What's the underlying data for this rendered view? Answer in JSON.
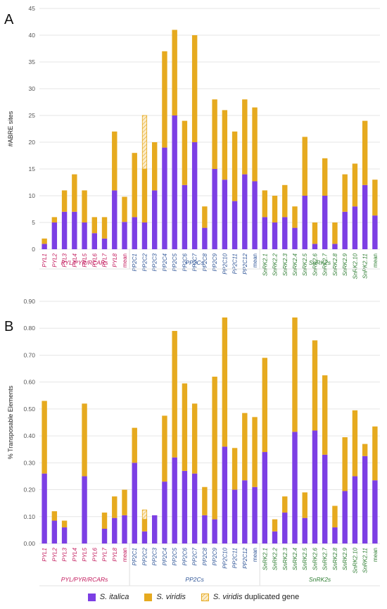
{
  "colors": {
    "italica": "#7c3fe4",
    "viridis": "#e6aa1f",
    "dup_fill": "#fbeccb",
    "pyl_label": "#c2185b",
    "pp2c_label": "#2f5597",
    "snrk_label": "#2e7d32",
    "grid": "#e6e6e6"
  },
  "legend": {
    "italica": "S. italica",
    "viridis": "S. viridis",
    "duplicated_species": "S. viridis",
    "duplicated_suffix": "duplicated gene"
  },
  "chart_data": [
    {
      "type": "bar",
      "stacked": true,
      "panel": "A",
      "ylabel": "#ABRE sites",
      "ylim": [
        0,
        45
      ],
      "yticks": [
        "0",
        "5",
        "10",
        "15",
        "20",
        "25",
        "30",
        "35",
        "40",
        "45"
      ],
      "grid": true,
      "groups": [
        {
          "label": "PYL/PYR/RCARs",
          "color_key": "pyl_label",
          "start": 0,
          "end": 8
        },
        {
          "label": "PP2Cs",
          "color_key": "pp2c_label",
          "start": 9,
          "end": 21
        },
        {
          "label": "SnRK2s",
          "color_key": "snrk_label",
          "start": 22,
          "end": 33
        }
      ],
      "categories": [
        "PYL1",
        "PYL2",
        "PYL3",
        "PYL4",
        "PYL5",
        "PYL6",
        "PYL7",
        "PYL8",
        "mean",
        "PP2C1",
        "PP2C2",
        "PP2C3",
        "PP2C4",
        "PP2C5",
        "PP2C6",
        "PP2C7",
        "PP2C8",
        "PP2C9",
        "PP2C10",
        "PP2C11",
        "PP2C12",
        "mean",
        "SnRK2.1",
        "SnRK2.2",
        "SnRK2.3",
        "SnRK2.4",
        "SnRK2.5",
        "SnRK2.6",
        "SnRK2.7",
        "SnRK2.8",
        "SnRK2.9",
        "SnRK2.10",
        "SnRK2.11",
        "mean"
      ],
      "series": [
        {
          "name": "S. italica",
          "values": [
            1,
            5,
            7,
            7,
            5,
            3,
            2,
            11,
            5.1,
            6,
            5,
            11,
            19,
            25,
            12,
            20,
            4,
            15,
            13,
            9,
            14,
            12.7,
            6,
            5,
            6,
            4,
            10,
            1,
            10,
            1,
            7,
            8,
            12,
            6.3
          ]
        },
        {
          "name": "S. viridis",
          "values": [
            1,
            1,
            4,
            7,
            6,
            3,
            4,
            11,
            4.7,
            12,
            10,
            9,
            18,
            16,
            12,
            20,
            4,
            13,
            13,
            13,
            14,
            13.8,
            5,
            5,
            6,
            4,
            11,
            4,
            7,
            4,
            7,
            8,
            12,
            6.7
          ]
        },
        {
          "name": "S. viridis duplicated gene",
          "values": [
            0,
            0,
            0,
            0,
            0,
            0,
            0,
            0,
            0,
            0,
            10,
            0,
            0,
            0,
            0,
            0,
            0,
            0,
            0,
            0,
            0,
            0,
            0,
            0,
            0,
            0,
            0,
            0,
            0,
            0,
            0,
            0,
            0,
            0
          ]
        }
      ]
    },
    {
      "type": "bar",
      "stacked": true,
      "panel": "B",
      "ylabel": "% Transposable Elements",
      "ylim": [
        0,
        0.9
      ],
      "yticks": [
        "0.00",
        "0.10",
        "0.20",
        "0.30",
        "0.40",
        "0.50",
        "0.60",
        "0.70",
        "0.80",
        "0.90"
      ],
      "grid": true,
      "groups": [
        {
          "label": "PYL/PYR/RCARs",
          "color_key": "pyl_label",
          "start": 0,
          "end": 8
        },
        {
          "label": "PP2Cs",
          "color_key": "pp2c_label",
          "start": 9,
          "end": 21
        },
        {
          "label": "SnRK2s",
          "color_key": "snrk_label",
          "start": 22,
          "end": 33
        }
      ],
      "categories": [
        "PYL1",
        "PYL2",
        "PYL3",
        "PYL4",
        "PYL5",
        "PYL6",
        "PYL7",
        "PYL8",
        "mean",
        "PP2C1",
        "PP2C2",
        "PP2C3",
        "PP2C4",
        "PP2C5",
        "PP2C6",
        "PP2C7",
        "PP2C8",
        "PP2C9",
        "PP2C10",
        "PP2C11",
        "PP2C12",
        "mean",
        "SnRK2.1",
        "SnRK2.2",
        "SnRK2.3",
        "SnRK2.4",
        "SnRK2.5",
        "SnRK2.6",
        "SnRK2.7",
        "SnRK2.8",
        "SnRK2.9",
        "SnRK2.10",
        "SnRK2.11",
        "mean"
      ],
      "series": [
        {
          "name": "S. italica",
          "values": [
            0.26,
            0.085,
            0.06,
            0,
            0.25,
            0,
            0.055,
            0.095,
            0.105,
            0.3,
            0.045,
            0.105,
            0.23,
            0.32,
            0.27,
            0.26,
            0.105,
            0.09,
            0.36,
            0.2,
            0.235,
            0.21,
            0.34,
            0.045,
            0.115,
            0.415,
            0.095,
            0.42,
            0.33,
            0.06,
            0.195,
            0.25,
            0.325,
            0.235
          ]
        },
        {
          "name": "S. viridis",
          "values": [
            0.27,
            0.035,
            0.025,
            0,
            0.27,
            0,
            0.06,
            0.08,
            0.095,
            0.13,
            0.045,
            0,
            0.245,
            0.47,
            0.325,
            0.26,
            0.105,
            0.53,
            0.48,
            0.155,
            0.25,
            0.26,
            0.35,
            0.045,
            0.06,
            0.425,
            0.095,
            0.335,
            0.295,
            0.08,
            0.2,
            0.245,
            0.045,
            0.2
          ]
        },
        {
          "name": "S. viridis duplicated gene",
          "values": [
            0,
            0,
            0,
            0,
            0,
            0,
            0,
            0,
            0,
            0,
            0.035,
            0,
            0,
            0,
            0,
            0,
            0,
            0,
            0,
            0,
            0,
            0,
            0,
            0,
            0,
            0,
            0,
            0,
            0,
            0,
            0,
            0,
            0,
            0
          ]
        }
      ]
    }
  ]
}
